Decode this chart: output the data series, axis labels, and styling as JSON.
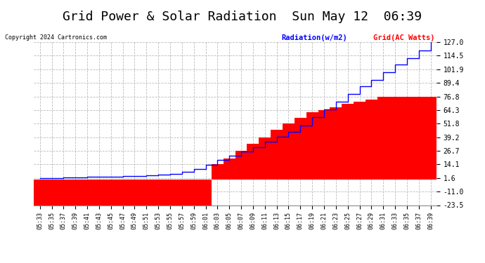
{
  "title": "Grid Power & Solar Radiation  Sun May 12  06:39",
  "copyright": "Copyright 2024 Cartronics.com",
  "legend_radiation": "Radiation(w/m2)",
  "legend_grid": "Grid(AC Watts)",
  "yticks": [
    127.0,
    114.5,
    101.9,
    89.4,
    76.8,
    64.3,
    51.8,
    39.2,
    26.7,
    14.1,
    1.6,
    -11.0,
    -23.5
  ],
  "ylim": [
    -23.5,
    127.0
  ],
  "background_color": "#ffffff",
  "grid_color": "#bbbbbb",
  "bar_color": "#ff0000",
  "line_color": "#0000ff",
  "title_fontsize": 13,
  "xtick_labels": [
    "05:33",
    "05:35",
    "05:37",
    "05:39",
    "05:41",
    "05:43",
    "05:45",
    "05:47",
    "05:49",
    "05:51",
    "05:53",
    "05:55",
    "05:57",
    "05:59",
    "06:01",
    "06:03",
    "06:05",
    "06:07",
    "06:09",
    "06:11",
    "06:13",
    "06:15",
    "06:17",
    "06:19",
    "06:21",
    "06:23",
    "06:25",
    "06:27",
    "06:29",
    "06:31",
    "06:33",
    "06:35",
    "06:37",
    "06:39"
  ],
  "grid_values": [
    -23.5,
    -23.5,
    -23.5,
    -23.5,
    -23.5,
    -23.5,
    -23.5,
    -23.5,
    -23.5,
    -23.5,
    -23.5,
    -23.5,
    -23.5,
    -23.5,
    -23.5,
    14.1,
    19.5,
    26.7,
    33.0,
    39.2,
    46.0,
    51.8,
    57.0,
    62.0,
    64.3,
    67.0,
    70.0,
    72.0,
    74.0,
    76.8,
    76.8,
    76.8,
    76.8,
    76.8
  ],
  "radiation_values": [
    1.6,
    1.6,
    2.0,
    2.2,
    2.5,
    2.8,
    3.0,
    3.2,
    3.5,
    4.0,
    4.5,
    5.5,
    7.5,
    10.0,
    13.5,
    18.0,
    22.0,
    26.0,
    30.0,
    35.0,
    39.5,
    44.0,
    50.0,
    58.0,
    65.0,
    72.0,
    79.0,
    86.0,
    92.0,
    99.0,
    106.0,
    112.0,
    119.0,
    127.0
  ]
}
